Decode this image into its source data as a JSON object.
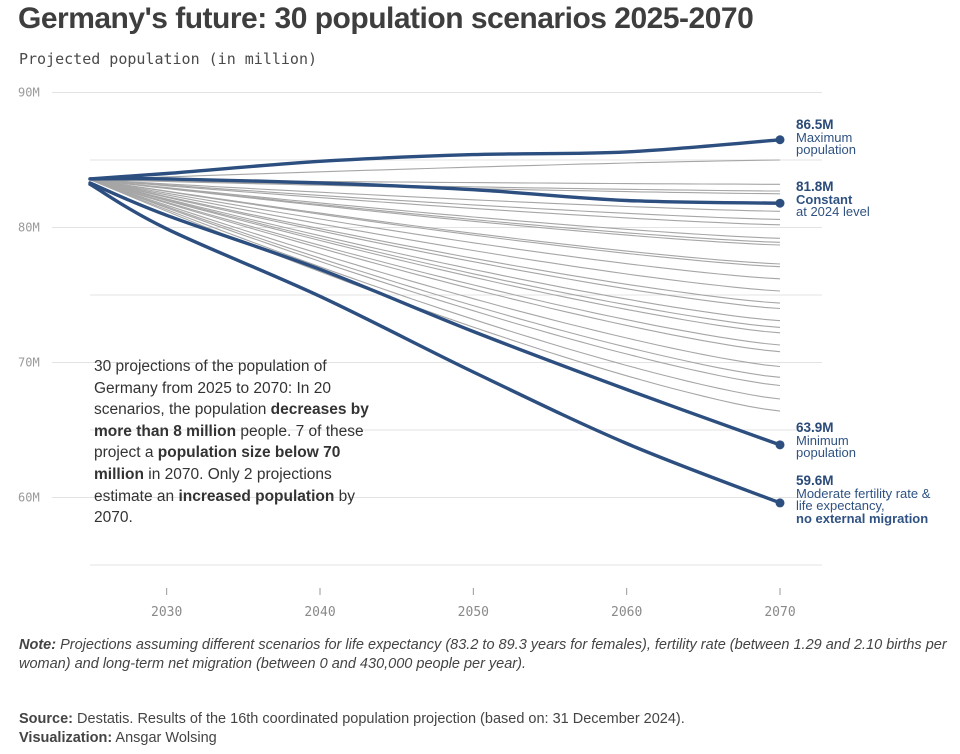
{
  "title": "Germany's future: 30 population scenarios 2025-2070",
  "subtitle": "Projected population (in million)",
  "colors": {
    "highlight": "#2c4f80",
    "scenario": "#a6a6a6",
    "grid": "#e3e3e3"
  },
  "chart_data": {
    "type": "line",
    "x_range": [
      2025,
      2070
    ],
    "ylim": [
      55,
      90
    ],
    "y_ticks": [
      "90M",
      "80M",
      "70M",
      "60M"
    ],
    "y_tick_values": [
      90,
      80,
      70,
      60
    ],
    "x_ticks": [
      "2030",
      "2040",
      "2050",
      "2060",
      "2070"
    ],
    "x_tick_values": [
      2030,
      2040,
      2050,
      2060,
      2070
    ],
    "grid": "horizontal",
    "x": [
      2025,
      2030,
      2040,
      2050,
      2060,
      2070
    ],
    "highlighted_series": [
      {
        "id": "maximum",
        "values": [
          83.6,
          84.0,
          84.9,
          85.4,
          85.6,
          86.5
        ]
      },
      {
        "id": "constant",
        "values": [
          83.6,
          83.6,
          83.3,
          82.8,
          82.0,
          81.8
        ]
      },
      {
        "id": "minimum",
        "values": [
          83.3,
          80.9,
          76.9,
          72.3,
          68.0,
          63.9
        ]
      },
      {
        "id": "no_migration",
        "values": [
          83.2,
          79.9,
          74.9,
          69.3,
          64.0,
          59.6
        ]
      }
    ],
    "scenario_end_values": [
      85.0,
      83.2,
      82.7,
      82.5,
      81.2,
      80.6,
      80.2,
      79.2,
      78.9,
      78.7,
      77.3,
      77.1,
      76.2,
      75.3,
      74.4,
      74.0,
      73.1,
      72.6,
      72.2,
      71.3,
      70.8,
      69.7,
      68.9,
      68.3,
      67.3,
      66.4
    ]
  },
  "annotations": [
    {
      "id": "max",
      "value": "86.5M",
      "line1": "Maximum",
      "line2": "population"
    },
    {
      "id": "constant",
      "value": "81.8M",
      "line1": "Constant",
      "line2": "at 2024 level"
    },
    {
      "id": "min",
      "value": "63.9M",
      "line1": "Minimum",
      "line2": "population"
    },
    {
      "id": "nomig",
      "value": "59.6M",
      "line1": "Moderate fertility rate &",
      "line2": "life expectancy,",
      "line3": "no external migration"
    }
  ],
  "callout": {
    "t1": "30 projections of the population of Germany from 2025 to 2070: In 20 scenarios, the population ",
    "b1": "decreases by more than 8 million",
    "t2": " people. 7 of these project a ",
    "b2": "population size below 70 million",
    "t3": " in 2070. Only 2 projections estimate an ",
    "b3": "increased population",
    "t4": " by 2070."
  },
  "note": {
    "label": "Note:",
    "text": " Projections assuming different scenarios for life expectancy (83.2 to 89.3 years for females), fertility rate (between 1.29 and 2.10 births per woman) and long-term net migration (between 0 and 430,000 people per year)."
  },
  "source": {
    "label": "Source:",
    "text": " Destatis. Results of the 16th coordinated population projection (based on: 31 December 2024).",
    "viz_label": "Visualization:",
    "viz_text": " Ansgar Wolsing"
  }
}
